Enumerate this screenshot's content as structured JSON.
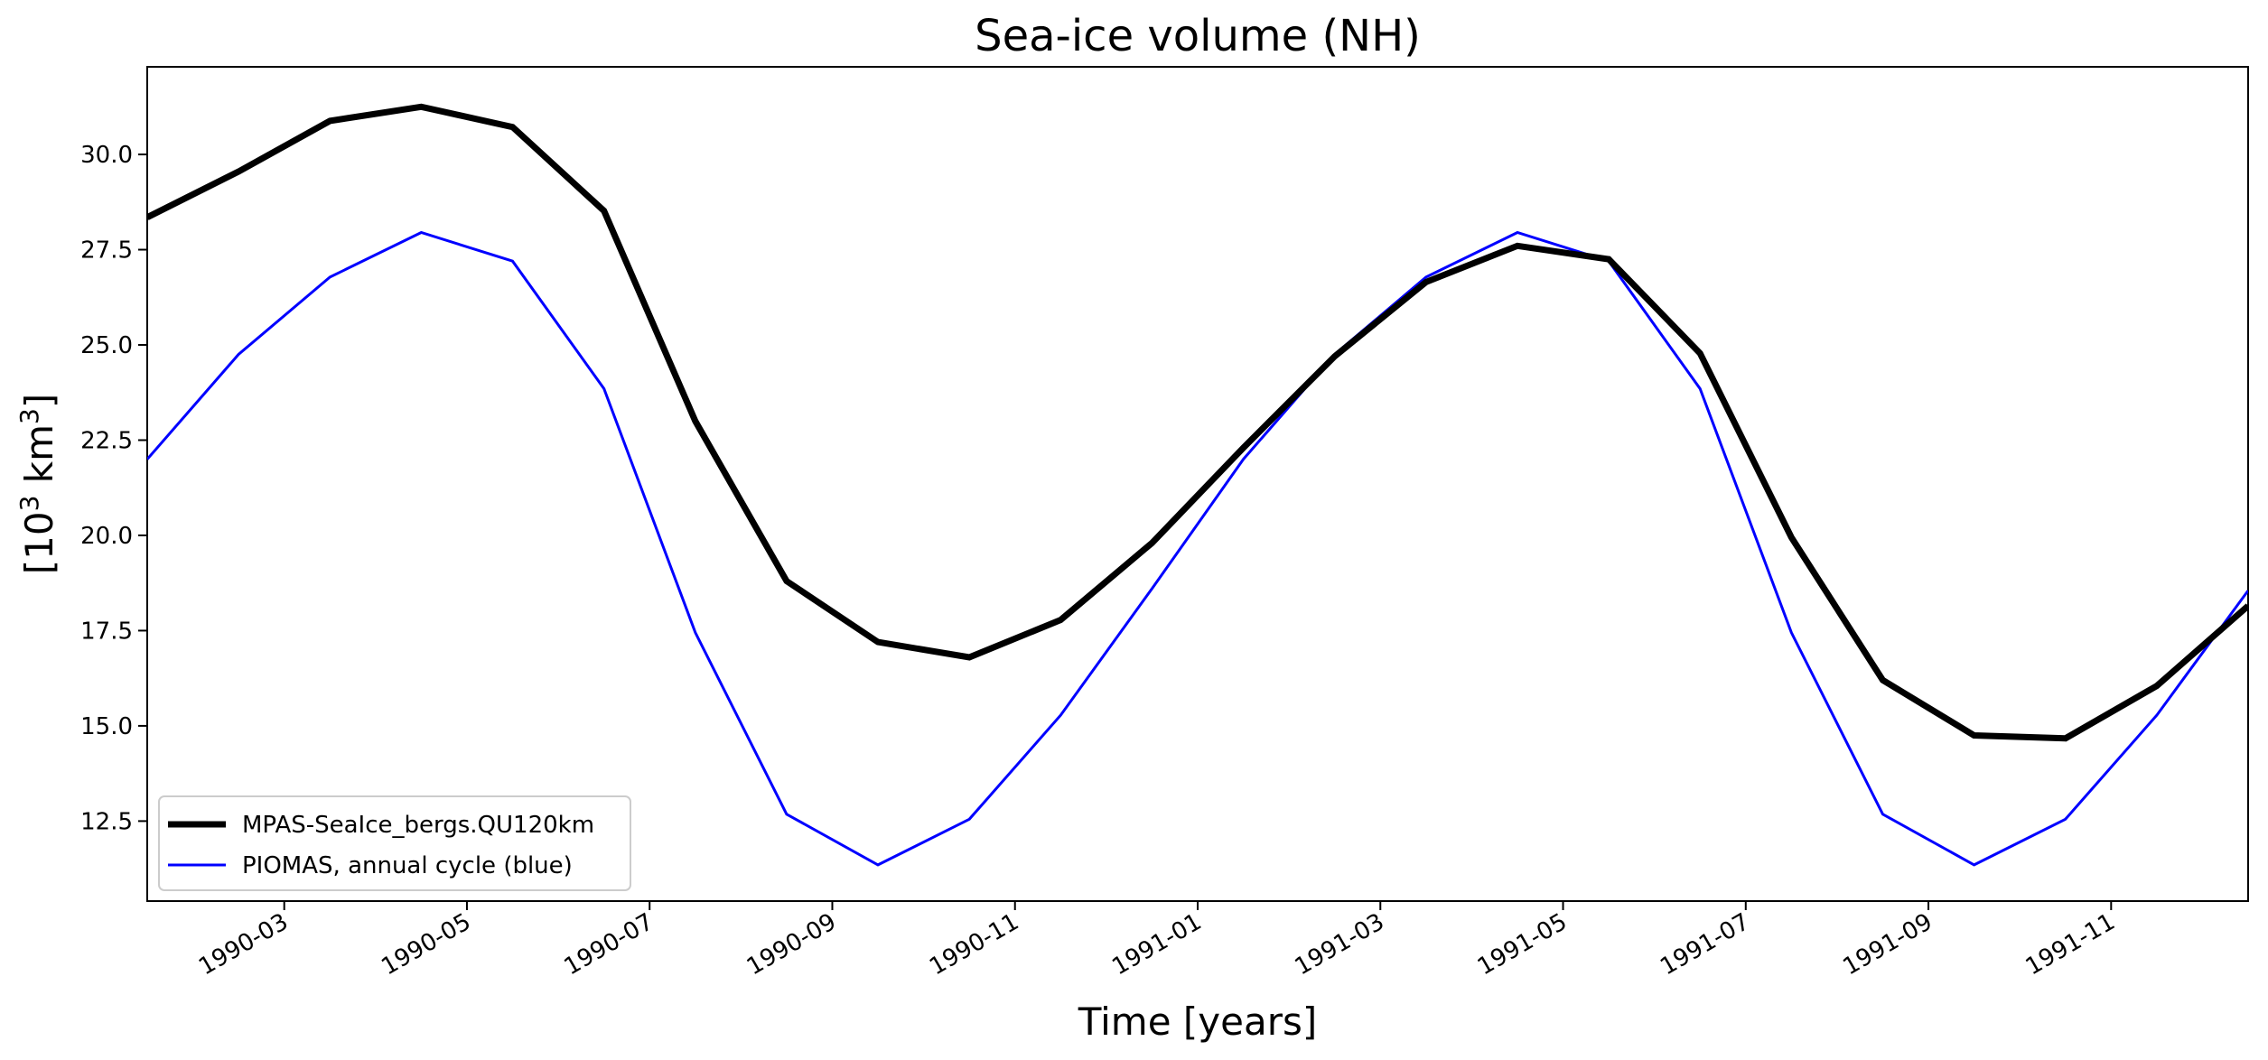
{
  "chart_data": {
    "type": "line",
    "title": "Sea-ice volume (NH)",
    "xlabel": "Time [years]",
    "ylabel": {
      "base": "[10",
      "sup": "3",
      "rest": " km",
      "sup2": "3",
      "close": "]"
    },
    "x_months": [
      1.0,
      2.0,
      3.0,
      4.0,
      5.0,
      6.0,
      7.0,
      8.0,
      9.0,
      10.0,
      11.0,
      12.0,
      13.0,
      14.0,
      15.0,
      16.0,
      17.0,
      18.0,
      19.0,
      20.0,
      21.0,
      22.0,
      23.0,
      24.0
    ],
    "xlim": [
      0.5,
      23.5
    ],
    "ylim": [
      10.4,
      32.3
    ],
    "yticks": [
      12.5,
      15.0,
      17.5,
      20.0,
      22.5,
      25.0,
      27.5,
      30.0
    ],
    "ytick_labels": [
      "12.5",
      "15.0",
      "17.5",
      "20.0",
      "22.5",
      "25.0",
      "27.5",
      "30.0"
    ],
    "xticks": [
      2.0,
      4.0,
      6.0,
      8.0,
      10.0,
      12.0,
      14.0,
      16.0,
      18.0,
      20.0,
      22.0
    ],
    "xtick_labels": [
      "1990-03",
      "1990-05",
      "1990-07",
      "1990-09",
      "1990-11",
      "1991-01",
      "1991-03",
      "1991-05",
      "1991-07",
      "1991-09",
      "1991-11"
    ],
    "series": [
      {
        "name": "MPAS-SeaIce_bergs.QU120km",
        "color": "#000000",
        "linewidth": 7,
        "x": [
          0.5,
          1.5,
          2.5,
          3.5,
          4.5,
          5.5,
          6.5,
          7.5,
          8.5,
          9.5,
          10.5,
          11.5,
          12.5,
          13.5,
          14.5,
          15.5,
          16.5,
          17.5,
          18.5,
          19.5,
          20.5,
          21.5,
          22.5,
          23.5
        ],
        "values": [
          28.35,
          29.55,
          30.88,
          31.25,
          30.72,
          28.52,
          23.0,
          18.8,
          17.2,
          16.8,
          17.78,
          19.8,
          22.3,
          24.7,
          26.65,
          27.6,
          27.25,
          24.78,
          19.95,
          16.2,
          14.75,
          14.67,
          16.05,
          18.15
        ]
      },
      {
        "name": "PIOMAS, annual cycle (blue)",
        "color": "#0000ff",
        "linewidth": 3,
        "x": [
          0.5,
          1.5,
          2.5,
          3.5,
          4.5,
          5.5,
          6.5,
          7.5,
          8.5,
          9.5,
          10.5,
          11.5,
          12.5,
          13.5,
          14.5,
          15.5,
          16.5,
          17.5,
          18.5,
          19.5,
          20.5,
          21.5,
          22.5,
          23.5
        ],
        "values": [
          22.0,
          24.75,
          26.78,
          27.95,
          27.2,
          23.85,
          17.45,
          12.68,
          11.35,
          12.55,
          15.28,
          18.6,
          22.0,
          24.75,
          26.78,
          27.95,
          27.2,
          23.85,
          17.45,
          12.68,
          11.35,
          12.55,
          15.28,
          18.55
        ]
      }
    ],
    "legend": {
      "location": "lower-left",
      "entries": [
        "MPAS-SeaIce_bergs.QU120km",
        "PIOMAS, annual cycle (blue)"
      ]
    },
    "grid": false
  }
}
